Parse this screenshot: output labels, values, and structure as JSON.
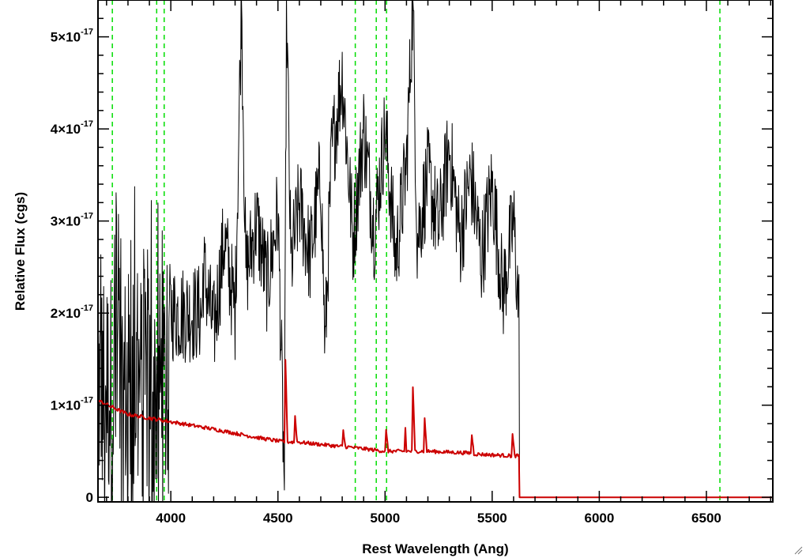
{
  "chart_data": {
    "type": "line",
    "title": "",
    "xlabel": "Rest Wavelength (Ang)",
    "ylabel": "Relative Flux (cgs)",
    "xlim": [
      3660,
      6810
    ],
    "ylim": [
      -0.05,
      5.4
    ],
    "y_scale_note": "",
    "x_ticks": [
      {
        "value": 4000,
        "label": "4000"
      },
      {
        "value": 4500,
        "label": "4500"
      },
      {
        "value": 5000,
        "label": "5000"
      },
      {
        "value": 5500,
        "label": "5500"
      },
      {
        "value": 6000,
        "label": "6000"
      },
      {
        "value": 6500,
        "label": "6500"
      }
    ],
    "y_ticks": [
      {
        "value": 0,
        "mantissa": "0",
        "exponent": ""
      },
      {
        "value": 1,
        "mantissa": "1×10",
        "exponent": "-17"
      },
      {
        "value": 2,
        "mantissa": "2×10",
        "exponent": "-17"
      },
      {
        "value": 3,
        "mantissa": "3×10",
        "exponent": "-17"
      },
      {
        "value": 4,
        "mantissa": "4×10",
        "exponent": "-17"
      },
      {
        "value": 5,
        "mantissa": "5×10",
        "exponent": "-17"
      }
    ],
    "grid": false,
    "vertical_markers": {
      "color": "#00dd00",
      "style": "dashed",
      "x": [
        3727,
        3934,
        3969,
        4861,
        4959,
        5007,
        6563
      ]
    },
    "series": [
      {
        "color": "#000000",
        "style": "spectrum",
        "description_points": [
          [
            3660,
            1.0
          ],
          [
            3680,
            0.3
          ],
          [
            3700,
            2.1
          ],
          [
            3720,
            0.4
          ],
          [
            3740,
            2.4
          ],
          [
            3760,
            0.6
          ],
          [
            3780,
            1.8
          ],
          [
            3800,
            0.9
          ],
          [
            3820,
            2.3
          ],
          [
            3840,
            0.1
          ],
          [
            3860,
            3.3
          ],
          [
            3880,
            0.2
          ],
          [
            3900,
            2.0
          ],
          [
            3920,
            0.3
          ],
          [
            3940,
            1.6
          ],
          [
            3960,
            0.0
          ],
          [
            3980,
            2.3
          ],
          [
            4000,
            1.7
          ],
          [
            4050,
            2.6
          ],
          [
            4100,
            1.6
          ],
          [
            4150,
            2.5
          ],
          [
            4200,
            1.8
          ],
          [
            4250,
            2.8
          ],
          [
            4300,
            2.0
          ],
          [
            4330,
            5.4
          ],
          [
            4350,
            2.4
          ],
          [
            4400,
            3.0
          ],
          [
            4450,
            2.3
          ],
          [
            4500,
            3.1
          ],
          [
            4530,
            0.1
          ],
          [
            4540,
            5.4
          ],
          [
            4560,
            2.5
          ],
          [
            4600,
            3.2
          ],
          [
            4650,
            2.6
          ],
          [
            4700,
            3.5
          ],
          [
            4720,
            1.6
          ],
          [
            4750,
            3.7
          ],
          [
            4800,
            4.6
          ],
          [
            4850,
            2.8
          ],
          [
            4900,
            4.0
          ],
          [
            4950,
            2.9
          ],
          [
            5000,
            4.0
          ],
          [
            5050,
            2.6
          ],
          [
            5100,
            3.6
          ],
          [
            5130,
            5.4
          ],
          [
            5150,
            2.8
          ],
          [
            5200,
            3.5
          ],
          [
            5250,
            2.9
          ],
          [
            5300,
            3.8
          ],
          [
            5350,
            2.8
          ],
          [
            5400,
            3.5
          ],
          [
            5450,
            2.6
          ],
          [
            5500,
            3.4
          ],
          [
            5550,
            2.2
          ],
          [
            5600,
            3.0
          ],
          [
            5625,
            2.0
          ],
          [
            5628,
            0.0
          ],
          [
            6810,
            0.0
          ]
        ]
      },
      {
        "color": "#cc0000",
        "style": "error",
        "description_points": [
          [
            3660,
            1.05
          ],
          [
            3800,
            0.9
          ],
          [
            4000,
            0.82
          ],
          [
            4200,
            0.74
          ],
          [
            4400,
            0.65
          ],
          [
            4530,
            0.6
          ],
          [
            4535,
            1.5
          ],
          [
            4545,
            0.6
          ],
          [
            4575,
            0.6
          ],
          [
            4580,
            0.88
          ],
          [
            4590,
            0.6
          ],
          [
            4800,
            0.55
          ],
          [
            4805,
            0.72
          ],
          [
            4815,
            0.55
          ],
          [
            5000,
            0.5
          ],
          [
            5005,
            0.72
          ],
          [
            5015,
            0.5
          ],
          [
            5090,
            0.5
          ],
          [
            5095,
            0.75
          ],
          [
            5100,
            0.5
          ],
          [
            5125,
            0.5
          ],
          [
            5130,
            1.2
          ],
          [
            5140,
            0.5
          ],
          [
            5180,
            0.5
          ],
          [
            5185,
            0.85
          ],
          [
            5195,
            0.5
          ],
          [
            5400,
            0.48
          ],
          [
            5405,
            0.68
          ],
          [
            5415,
            0.47
          ],
          [
            5590,
            0.45
          ],
          [
            5595,
            0.68
          ],
          [
            5605,
            0.45
          ],
          [
            5625,
            0.45
          ],
          [
            5628,
            0.0
          ],
          [
            6810,
            0.0
          ]
        ]
      }
    ]
  }
}
